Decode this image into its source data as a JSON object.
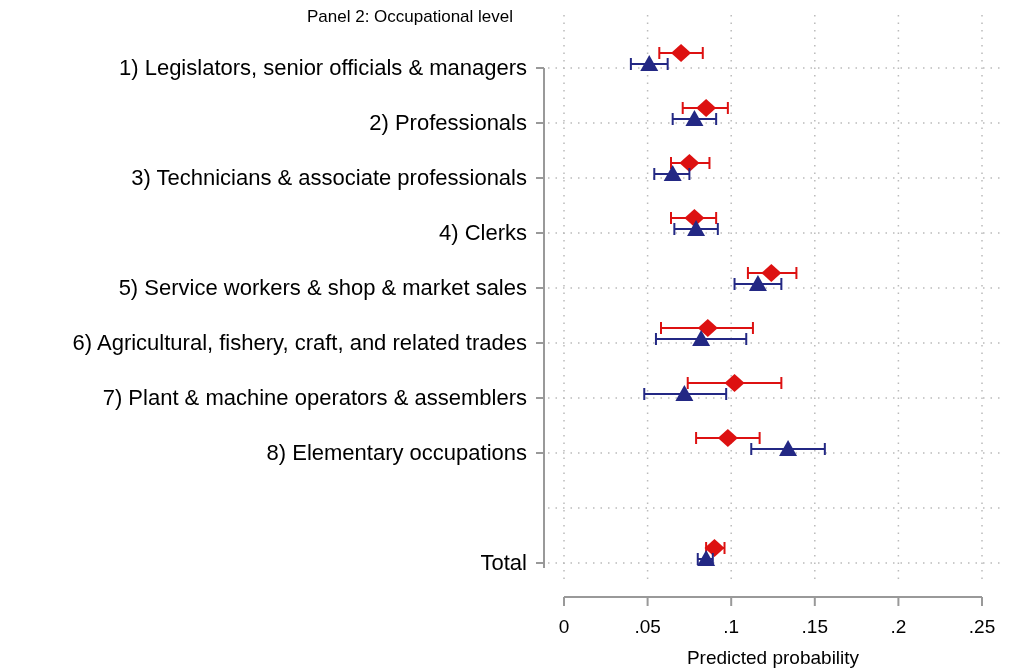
{
  "chart_data": {
    "type": "scatter",
    "orientation": "horizontal",
    "title": "Panel 2: Occupational level",
    "xlabel": "Predicted probability",
    "categories": [
      "1) Legislators, senior officials & managers",
      "2) Professionals",
      "3) Technicians & associate professionals",
      "4) Clerks",
      "5) Service workers & shop & market sales",
      "6) Agricultural, fishery, craft, and related trades",
      "7) Plant & machine operators & assemblers",
      "8) Elementary occupations",
      null,
      "Total"
    ],
    "series": [
      {
        "color": "#dd1111",
        "marker": "diamond",
        "values": [
          0.07,
          0.085,
          0.075,
          0.078,
          0.124,
          0.086,
          0.102,
          0.098,
          null,
          0.09
        ],
        "errors": [
          [
            0.057,
            0.083
          ],
          [
            0.071,
            0.098
          ],
          [
            0.064,
            0.087
          ],
          [
            0.064,
            0.091
          ],
          [
            0.11,
            0.139
          ],
          [
            0.058,
            0.113
          ],
          [
            0.074,
            0.13
          ],
          [
            0.079,
            0.117
          ],
          null,
          [
            0.085,
            0.096
          ]
        ]
      },
      {
        "color": "#232884",
        "marker": "triangle",
        "values": [
          0.051,
          0.078,
          0.065,
          0.079,
          0.116,
          0.082,
          0.072,
          0.134,
          null,
          0.085
        ],
        "errors": [
          [
            0.04,
            0.062
          ],
          [
            0.065,
            0.091
          ],
          [
            0.054,
            0.075
          ],
          [
            0.066,
            0.092
          ],
          [
            0.102,
            0.13
          ],
          [
            0.055,
            0.109
          ],
          [
            0.048,
            0.097
          ],
          [
            0.112,
            0.156
          ],
          null,
          [
            0.08,
            0.089
          ]
        ]
      }
    ],
    "xlim": [
      0,
      0.25
    ],
    "xticks": [
      0,
      {
        "value": 0.05,
        "label": ".05"
      },
      {
        "value": 0.1,
        "label": ".1"
      },
      {
        "value": 0.15,
        "label": ".15"
      },
      {
        "value": 0.2,
        "label": ".2"
      },
      {
        "value": 0.25,
        "label": ".25"
      }
    ],
    "grid": true
  }
}
